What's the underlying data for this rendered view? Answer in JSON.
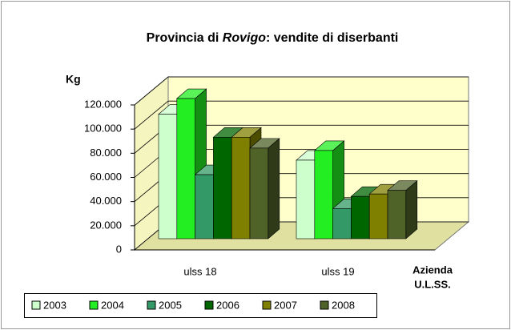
{
  "chart_data": {
    "type": "bar3d",
    "title": [
      "Provincia di ",
      "Rovigo",
      ": vendite di diserbanti"
    ],
    "y_label": "Kg",
    "x_label": [
      "Azienda",
      "U.L.SS."
    ],
    "categories": [
      "ulss 18",
      "ulss 19"
    ],
    "series": [
      {
        "name": "2003",
        "color": "#ccffcc",
        "values": [
          103000,
          65000
        ]
      },
      {
        "name": "2004",
        "color": "#22ee22",
        "values": [
          116000,
          73000
        ]
      },
      {
        "name": "2005",
        "color": "#339966",
        "values": [
          53000,
          25000
        ]
      },
      {
        "name": "2006",
        "color": "#006600",
        "values": [
          84000,
          35000
        ]
      },
      {
        "name": "2007",
        "color": "#808000",
        "values": [
          84000,
          37000
        ]
      },
      {
        "name": "2008",
        "color": "#4f6228",
        "values": [
          75000,
          40000
        ]
      }
    ],
    "ylim": [
      0,
      120000
    ],
    "yticks": [
      0,
      {
        "value": 20000,
        "label": "20.000"
      },
      {
        "value": 40000,
        "label": "40.000"
      },
      {
        "value": 60000,
        "label": "60.000"
      },
      {
        "value": 80000,
        "label": "80.000"
      },
      {
        "value": 100000,
        "label": "100.000"
      },
      {
        "value": 120000,
        "label": "120.000"
      }
    ],
    "grid": true,
    "legend": "bottom-left"
  }
}
